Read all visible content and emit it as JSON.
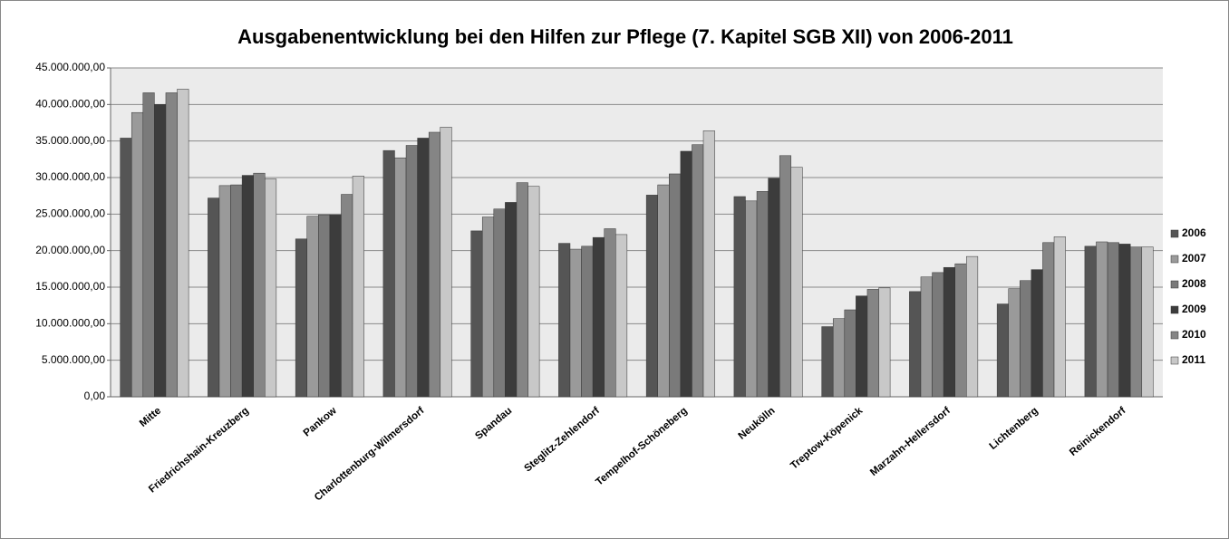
{
  "chart_data": {
    "type": "bar",
    "title": "Ausgabenentwicklung bei den Hilfen zur Pflege (7. Kapitel SGB XII) von 2006-2011",
    "categories": [
      "Mitte",
      "Friedrichshain-Kreuzberg",
      "Pankow",
      "Charlottenburg-Wilmersdorf",
      "Spandau",
      "Steglitz-Zehlendorf",
      "Tempelhof-Schöneberg",
      "Neukölln",
      "Treptow-Köpenick",
      "Marzahn-Hellersdorf",
      "Lichtenberg",
      "Reinickendorf"
    ],
    "series": [
      {
        "name": "2006",
        "color": "#555555",
        "values": [
          35400000,
          27200000,
          21600000,
          33700000,
          22700000,
          21000000,
          27600000,
          27400000,
          9600000,
          14400000,
          12700000,
          20600000
        ]
      },
      {
        "name": "2007",
        "color": "#9a9a9a",
        "values": [
          38900000,
          28900000,
          24700000,
          32700000,
          24600000,
          20200000,
          29000000,
          26800000,
          10700000,
          16400000,
          14800000,
          21200000
        ]
      },
      {
        "name": "2008",
        "color": "#7a7a7a",
        "values": [
          41600000,
          29000000,
          24900000,
          34400000,
          25700000,
          20600000,
          30500000,
          28100000,
          11900000,
          17000000,
          15900000,
          21100000
        ]
      },
      {
        "name": "2009",
        "color": "#3c3c3c",
        "values": [
          40000000,
          30300000,
          24900000,
          35400000,
          26600000,
          21800000,
          33600000,
          29900000,
          13800000,
          17700000,
          17400000,
          20900000
        ]
      },
      {
        "name": "2010",
        "color": "#858585",
        "values": [
          41600000,
          30600000,
          27700000,
          36200000,
          29300000,
          23000000,
          34500000,
          33000000,
          14700000,
          18200000,
          21100000,
          20500000
        ]
      },
      {
        "name": "2011",
        "color": "#c8c8c8",
        "values": [
          42100000,
          29800000,
          30200000,
          36900000,
          28800000,
          22200000,
          36400000,
          31400000,
          14900000,
          19200000,
          21900000,
          20500000
        ]
      }
    ],
    "ylim": [
      0,
      45000000
    ],
    "yticks": [
      {
        "value": 0,
        "label": "0,00"
      },
      {
        "value": 5000000,
        "label": "5.000.000,00"
      },
      {
        "value": 10000000,
        "label": "10.000.000,00"
      },
      {
        "value": 15000000,
        "label": "15.000.000,00"
      },
      {
        "value": 20000000,
        "label": "20.000.000,00"
      },
      {
        "value": 25000000,
        "label": "25.000.000,00"
      },
      {
        "value": 30000000,
        "label": "30.000.000,00"
      },
      {
        "value": 35000000,
        "label": "35.000.000,00"
      },
      {
        "value": 40000000,
        "label": "40.000.000,00"
      },
      {
        "value": 45000000,
        "label": "45.000.000,00"
      }
    ],
    "grid": true,
    "legend": "right"
  }
}
